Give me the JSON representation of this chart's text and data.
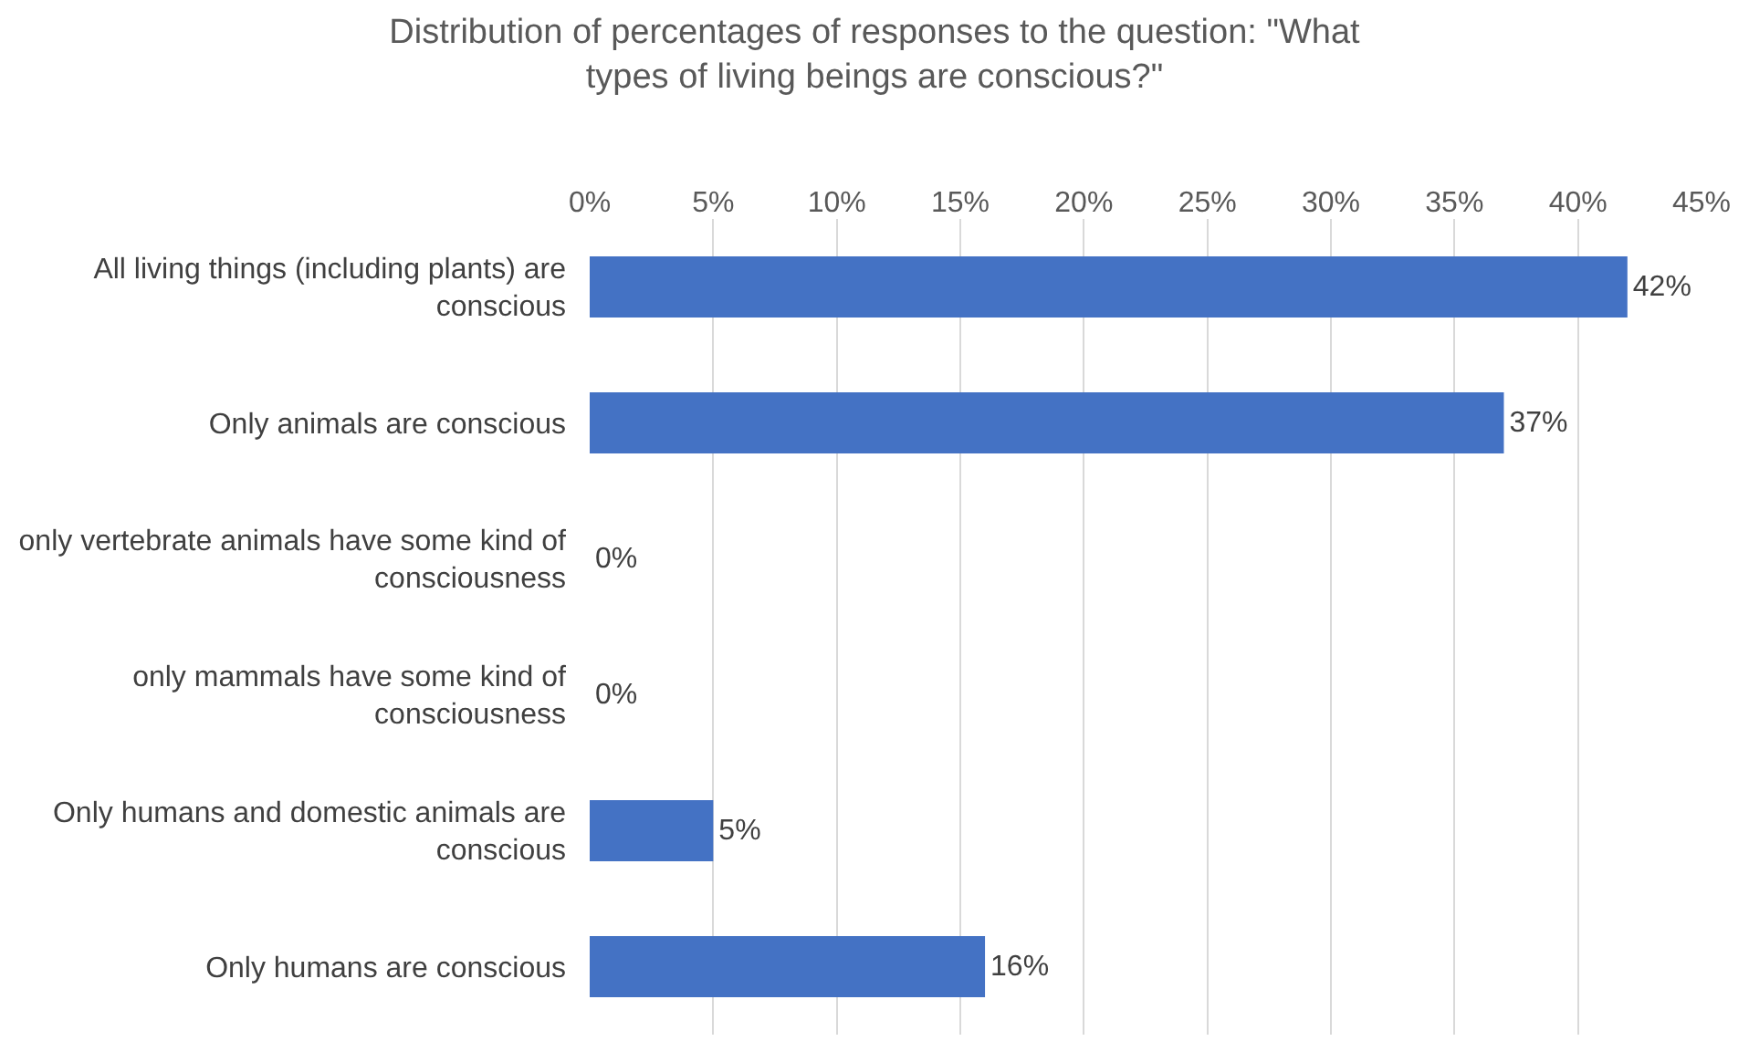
{
  "chart_data": {
    "type": "bar",
    "orientation": "horizontal",
    "title": "Distribution of percentages of responses to the question: \"What types of living beings are conscious?\"",
    "categories": [
      "All living things (including plants) are conscious",
      "Only animals are conscious",
      "only vertebrate animals have some kind of consciousness",
      "only mammals have some kind of consciousness",
      "Only humans and domestic animals are conscious",
      "Only humans are conscious"
    ],
    "values": [
      42,
      37,
      0,
      0,
      5,
      16
    ],
    "value_labels": [
      "42%",
      "37%",
      "0%",
      "0%",
      "5%",
      "16%"
    ],
    "color": "#4472c4",
    "xlim": [
      0,
      45
    ],
    "xticks": [
      {
        "value": 0,
        "label": "0%"
      },
      {
        "value": 5,
        "label": "5%"
      },
      {
        "value": 10,
        "label": "10%"
      },
      {
        "value": 15,
        "label": "15%"
      },
      {
        "value": 20,
        "label": "20%"
      },
      {
        "value": 25,
        "label": "25%"
      },
      {
        "value": 30,
        "label": "30%"
      },
      {
        "value": 35,
        "label": "35%"
      },
      {
        "value": 40,
        "label": "40%"
      },
      {
        "value": 45,
        "label": "45%"
      }
    ],
    "grid": "x",
    "legend": false
  }
}
